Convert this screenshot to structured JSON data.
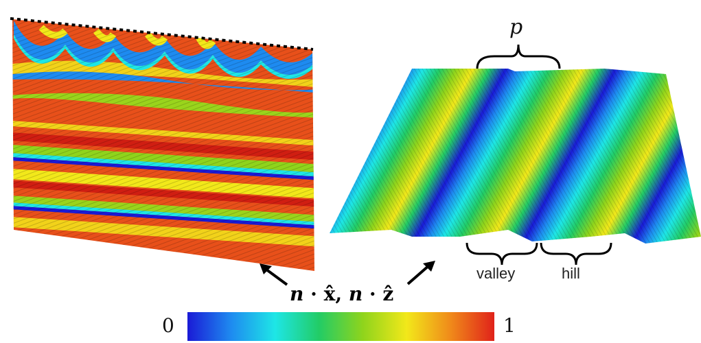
{
  "labels": {
    "period": "p",
    "valley": "valley",
    "hill": "hill",
    "formula": {
      "n1": "n",
      "dot1": " · ",
      "x": "x̂",
      "sep": ", ",
      "n2": "n",
      "dot2": " · ",
      "z": "ẑ"
    }
  },
  "colorbar": {
    "min_label": "0",
    "max_label": "1",
    "colors": [
      "#1a1ad6",
      "#1e8bf0",
      "#1ee6e6",
      "#22cc66",
      "#8fd41c",
      "#f2e81a",
      "#f08a1a",
      "#e0221a"
    ]
  },
  "icons": {
    "left_arrow": "arrow-up-left-icon",
    "right_arrow": "arrow-up-right-icon"
  }
}
